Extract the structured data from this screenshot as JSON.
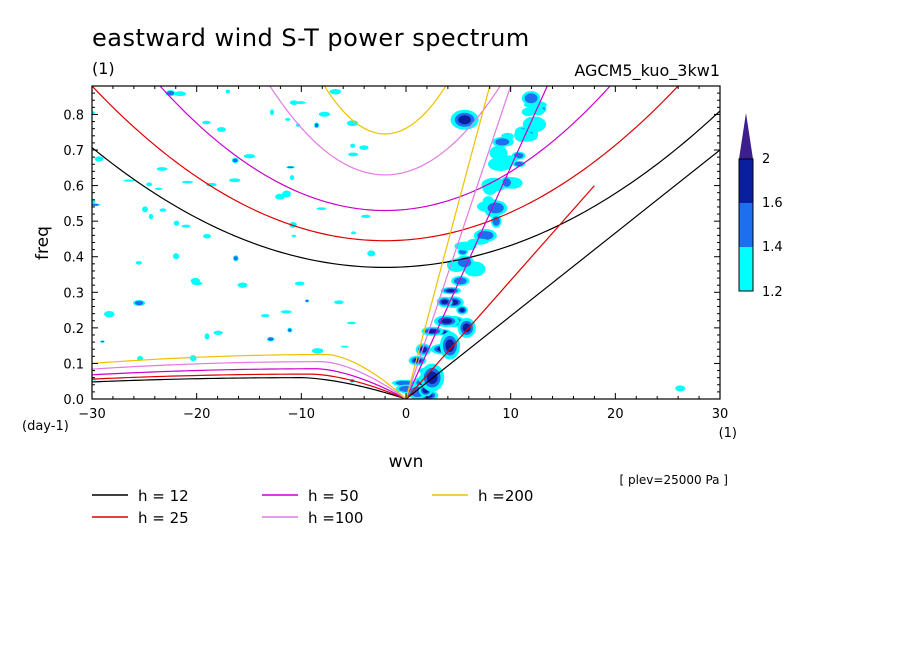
{
  "chart_data": {
    "type": "line",
    "title": "eastward wind S-T power spectrum",
    "subtitle_left": "(1)",
    "subtitle_right": "AGCM5_kuo_3kw1",
    "xlabel": "wvn",
    "ylabel": "freq",
    "x_unit": "(1)",
    "y_unit": "(day-1)",
    "xlim": [
      -30,
      30
    ],
    "ylim": [
      0,
      0.88
    ],
    "x_ticks": [
      -30,
      -20,
      -10,
      0,
      10,
      20,
      30
    ],
    "x_tick_labels": [
      "-30",
      "-20",
      "-10",
      "0",
      "10",
      "20",
      "30"
    ],
    "y_ticks": [
      0.0,
      0.1,
      0.2,
      0.3,
      0.4,
      0.5,
      0.6,
      0.7,
      0.8
    ],
    "y_tick_labels": [
      "0.0",
      "0.1",
      "0.2",
      "0.3",
      "0.4",
      "0.5",
      "0.6",
      "0.7",
      "0.8"
    ],
    "annotation": "[ plev=25000 Pa ]",
    "colorbar": {
      "levels": [
        "1.2",
        "1.4",
        "1.6",
        "2"
      ],
      "colors": [
        "#00ffff",
        "#1e6ef0",
        "#0a1fa0",
        "#3c1e8c"
      ]
    },
    "series": [
      {
        "name": "h = 12",
        "color": "#000000",
        "ig_peak": 0.06,
        "ig_x": -10,
        "mrg_min": 0.37,
        "kelvin_end": [
          30,
          0.7
        ],
        "eig_end": [
          30,
          0.81
        ]
      },
      {
        "name": "h = 25",
        "color": "#e00000",
        "ig_peak": 0.07,
        "ig_x": -9,
        "mrg_min": 0.445,
        "kelvin_end": [
          18,
          0.6
        ],
        "eig_end": [
          26,
          0.88
        ]
      },
      {
        "name": "h = 50",
        "color": "#cc00cc",
        "ig_peak": 0.085,
        "ig_x": -8.5,
        "mrg_min": 0.53,
        "kelvin_end": [
          13.5,
          0.88
        ],
        "eig_end": [
          19.5,
          0.88
        ]
      },
      {
        "name": "h =100",
        "color": "#e27be2",
        "ig_peak": 0.105,
        "ig_x": -8,
        "mrg_min": 0.63,
        "kelvin_end": [
          10,
          0.88
        ],
        "eig_end": [
          9,
          0.88
        ]
      },
      {
        "name": "h =200",
        "color": "#f0c000",
        "ig_peak": 0.125,
        "ig_x": -7.5,
        "mrg_min": 0.745,
        "kelvin_end": [
          8,
          0.88
        ],
        "eig_end": [
          3.8,
          0.88
        ]
      }
    ]
  }
}
